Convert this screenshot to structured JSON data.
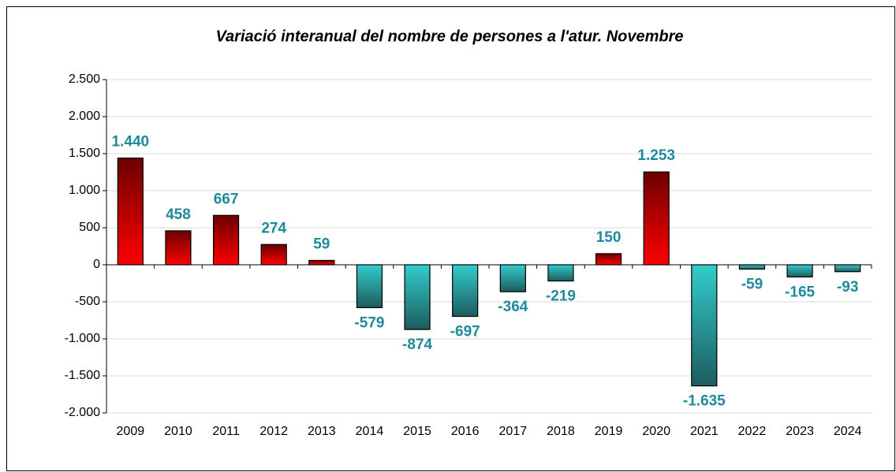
{
  "chart_data": {
    "type": "bar",
    "title": "Variació interanual del nombre de persones a l'atur. Novembre",
    "categories": [
      "2009",
      "2010",
      "2011",
      "2012",
      "2013",
      "2014",
      "2015",
      "2016",
      "2017",
      "2018",
      "2019",
      "2020",
      "2021",
      "2022",
      "2023",
      "2024"
    ],
    "values": [
      1440,
      458,
      667,
      274,
      59,
      -579,
      -874,
      -697,
      -364,
      -219,
      150,
      1253,
      -1635,
      -59,
      -165,
      -93
    ],
    "value_labels": [
      "1.440",
      "458",
      "667",
      "274",
      "59",
      "-579",
      "-874",
      "-697",
      "-364",
      "-219",
      "150",
      "1.253",
      "-1.635",
      "-59",
      "-165",
      "-93"
    ],
    "color": "#ff0000",
    "color_dark": "#6b0000",
    "negative_color": "#33cccc",
    "negative_color_dark": "#1d5c5e",
    "label_color": "#1f8a9c",
    "ylim": [
      -2000,
      2500
    ],
    "yticks": [
      {
        "value": -2000,
        "label": "-2.000"
      },
      {
        "value": -1500,
        "label": "-1.500"
      },
      {
        "value": -1000,
        "label": "-1.000"
      },
      {
        "value": -500,
        "label": "-500"
      },
      {
        "value": 0,
        "label": "0"
      },
      {
        "value": 500,
        "label": "500"
      },
      {
        "value": 1000,
        "label": "1.000"
      },
      {
        "value": 1500,
        "label": "1.500"
      },
      {
        "value": 2000,
        "label": "2.000"
      },
      {
        "value": 2500,
        "label": "2.500"
      }
    ],
    "grid": true
  }
}
